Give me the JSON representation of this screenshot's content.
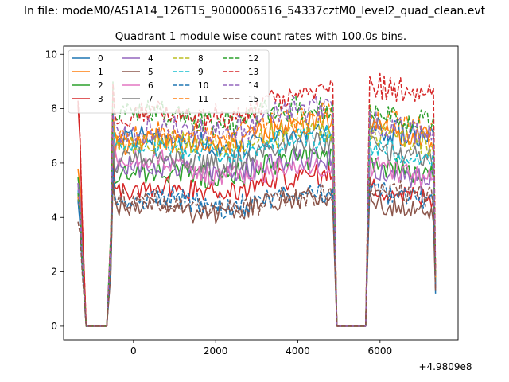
{
  "figure": {
    "suptitle": "In file: modeM0/AS1A14_126T15_9000006516_54337cztM0_level2_quad_clean.evt"
  },
  "chart_data": {
    "type": "line",
    "title": "Quadrant 1 module wise count rates with 100.0s bins.",
    "xlabel": "",
    "ylabel": "",
    "x_offset_label": "+4.9809e8",
    "xlim": [
      -1700,
      7900
    ],
    "ylim": [
      -0.5,
      10.3
    ],
    "xticks": [
      0,
      2000,
      4000,
      6000
    ],
    "yticks": [
      0,
      2,
      4,
      6,
      8,
      10
    ],
    "grid": false,
    "legend": {
      "location": "top-left",
      "columns": 4
    },
    "segments": [
      {
        "name": "active-1",
        "x_start": -1350,
        "x_end": -1250,
        "kind": "drop"
      },
      {
        "name": "gap-1",
        "x_start": -1150,
        "x_end": -650,
        "kind": "zero"
      },
      {
        "name": "active-2",
        "x_start": -550,
        "x_end": 4850,
        "kind": "active"
      },
      {
        "name": "gap-2",
        "x_start": 4950,
        "x_end": 5650,
        "kind": "zero"
      },
      {
        "name": "active-3",
        "x_start": 5750,
        "x_end": 7350,
        "kind": "active"
      }
    ],
    "series": [
      {
        "name": "0",
        "color": "#1f77b4",
        "style": "solid",
        "level_start": 6.9,
        "level_end": 7.1,
        "spike_start": 4.4,
        "level_after": 7.0,
        "end_value": 1.2
      },
      {
        "name": "1",
        "color": "#ff7f0e",
        "style": "solid",
        "level_start": 6.6,
        "level_end": 7.6,
        "spike_start": 6.0,
        "level_after": 7.0,
        "end_value": 1.8
      },
      {
        "name": "2",
        "color": "#2ca02c",
        "style": "solid",
        "level_start": 5.5,
        "level_end": 6.3,
        "spike_start": 5.5,
        "level_after": 5.7,
        "end_value": 1.6
      },
      {
        "name": "3",
        "color": "#d62728",
        "style": "solid",
        "level_start": 5.0,
        "level_end": 5.6,
        "spike_start": 8.0,
        "level_after": 4.8,
        "end_value": 1.5
      },
      {
        "name": "4",
        "color": "#9467bd",
        "style": "solid",
        "level_start": 5.8,
        "level_end": 6.2,
        "spike_start": 5.5,
        "level_after": 5.5,
        "end_value": 1.4
      },
      {
        "name": "5",
        "color": "#8c564b",
        "style": "solid",
        "level_start": 4.3,
        "level_end": 4.8,
        "spike_start": 5.0,
        "level_after": 4.3,
        "end_value": 1.3
      },
      {
        "name": "6",
        "color": "#e377c2",
        "style": "solid",
        "level_start": 6.2,
        "level_end": 5.7,
        "spike_start": 5.0,
        "level_after": 5.6,
        "end_value": 1.5
      },
      {
        "name": "7",
        "color": "#7f7f7f",
        "style": "solid",
        "level_start": 6.1,
        "level_end": 6.8,
        "spike_start": 5.0,
        "level_after": 6.3,
        "end_value": 1.6
      },
      {
        "name": "8",
        "color": "#bcbd22",
        "style": "dashed",
        "level_start": 6.7,
        "level_end": 7.3,
        "spike_start": 5.0,
        "level_after": 6.8,
        "end_value": 1.7
      },
      {
        "name": "9",
        "color": "#17becf",
        "style": "dashed",
        "level_start": 6.5,
        "level_end": 7.0,
        "spike_start": 5.0,
        "level_after": 6.3,
        "end_value": 1.6
      },
      {
        "name": "10",
        "color": "#1f77b4",
        "style": "dashed",
        "level_start": 4.7,
        "level_end": 4.9,
        "spike_start": 4.5,
        "level_after": 4.7,
        "end_value": 1.4
      },
      {
        "name": "11",
        "color": "#ff7f0e",
        "style": "dashed",
        "level_start": 7.0,
        "level_end": 7.8,
        "spike_start": 5.0,
        "level_after": 7.4,
        "end_value": 1.8
      },
      {
        "name": "12",
        "color": "#2ca02c",
        "style": "dashed",
        "level_start": 7.8,
        "level_end": 8.0,
        "spike_start": 5.0,
        "level_after": 7.6,
        "end_value": 1.9
      },
      {
        "name": "13",
        "color": "#d62728",
        "style": "dashed",
        "level_start": 7.6,
        "level_end": 8.6,
        "spike_start": 8.2,
        "level_after": 8.6,
        "end_value": 2.0
      },
      {
        "name": "14",
        "color": "#9467bd",
        "style": "dashed",
        "level_start": 7.0,
        "level_end": 8.1,
        "spike_start": 5.0,
        "level_after": 7.2,
        "end_value": 1.8
      },
      {
        "name": "15",
        "color": "#8c564b",
        "style": "dashed",
        "level_start": 4.6,
        "level_end": 4.8,
        "spike_start": 4.0,
        "level_after": 4.9,
        "end_value": 1.3
      }
    ]
  }
}
